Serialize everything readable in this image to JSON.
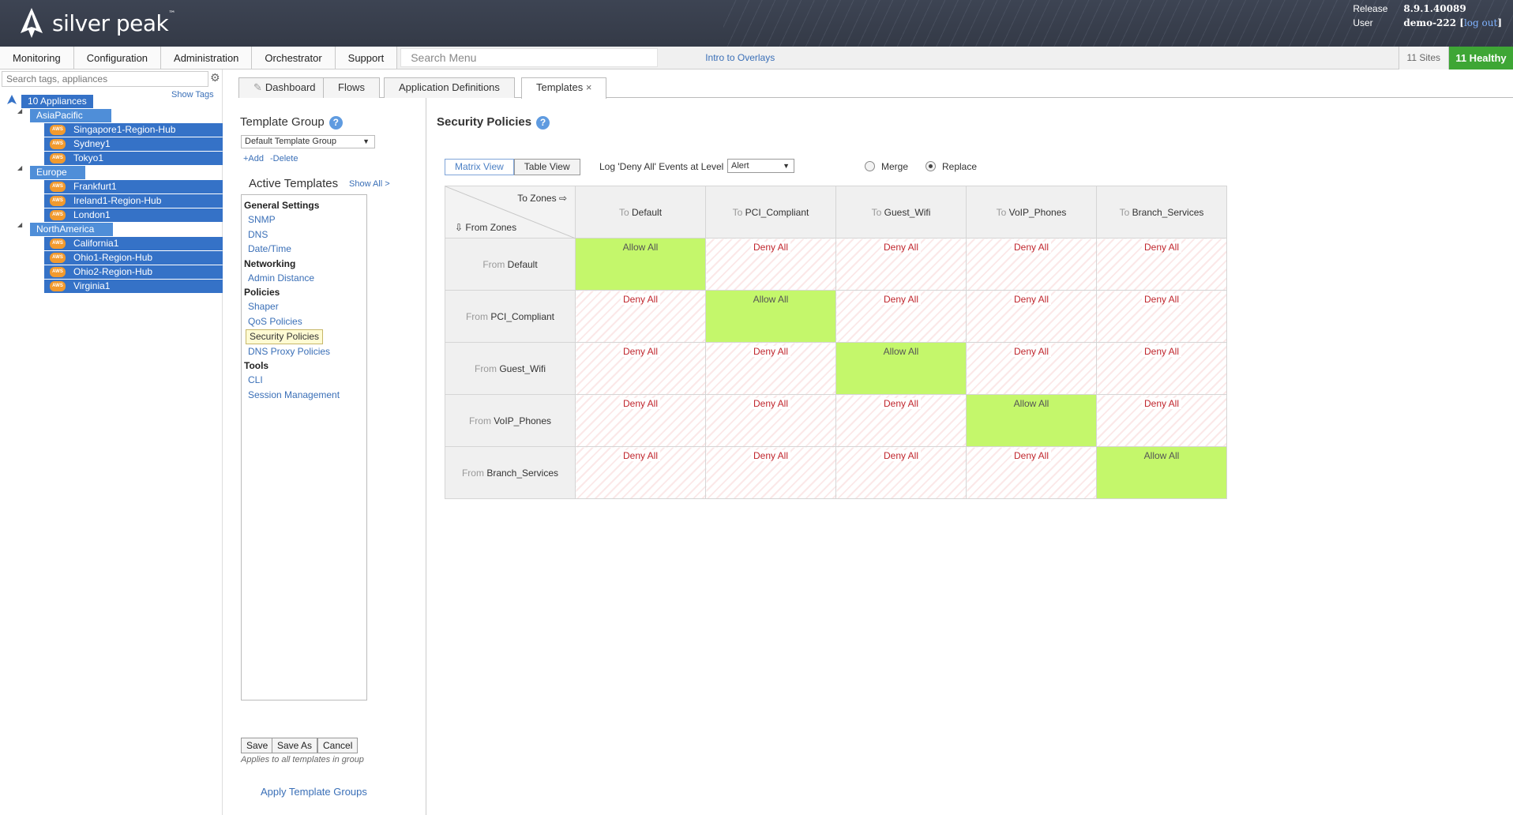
{
  "header": {
    "logo_text": "silver peak",
    "logo_tm": "™",
    "release_label": "Release",
    "release_value": "8.9.1.40089",
    "user_label": "User",
    "user_value": "demo-222",
    "logout_label": "log out"
  },
  "topnav": {
    "tabs": [
      "Monitoring",
      "Configuration",
      "Administration",
      "Orchestrator",
      "Support"
    ],
    "search_placeholder": "Search Menu",
    "intro_link": "Intro to Overlays",
    "sites": "11 Sites",
    "healthy": "11 Healthy",
    "healthy_color": "#3ea635"
  },
  "tree": {
    "search_placeholder": "Search tags, appliances",
    "show_tags": "Show Tags",
    "root": "10 Appliances",
    "groups": [
      {
        "name": "AsiaPacific",
        "items": [
          "Singapore1-Region-Hub",
          "Sydney1",
          "Tokyo1"
        ]
      },
      {
        "name": "Europe",
        "items": [
          "Frankfurt1",
          "Ireland1-Region-Hub",
          "London1"
        ]
      },
      {
        "name": "NorthAmerica",
        "items": [
          "California1",
          "Ohio1-Region-Hub",
          "Ohio2-Region-Hub",
          "Virginia1"
        ]
      }
    ],
    "aws_label": "AWS"
  },
  "subtabs": [
    "Dashboard",
    "Flows",
    "Application Definitions",
    "Templates"
  ],
  "templates": {
    "group_title": "Template Group",
    "group_selected": "Default Template Group",
    "add": "+Add",
    "delete": "-Delete",
    "active_title": "Active Templates",
    "show_all": "Show All >",
    "sections": [
      {
        "heading": "General Settings",
        "items": [
          "SNMP",
          "DNS",
          "Date/Time"
        ]
      },
      {
        "heading": "Networking",
        "items": [
          "Admin Distance"
        ]
      },
      {
        "heading": "Policies",
        "items": [
          "Shaper",
          "QoS Policies",
          "Security Policies",
          "DNS Proxy Policies"
        ]
      },
      {
        "heading": "Tools",
        "items": [
          "CLI",
          "Session Management"
        ]
      }
    ],
    "selected_item": "Security Policies",
    "save": "Save",
    "save_as": "Save As",
    "cancel": "Cancel",
    "applies_note": "Applies to all templates in group",
    "apply_groups": "Apply Template Groups"
  },
  "main": {
    "title": "Security Policies",
    "matrix_view": "Matrix View",
    "table_view": "Table View",
    "log_label": "Log 'Deny All' Events at Level",
    "log_level": "Alert",
    "merge": "Merge",
    "replace": "Replace",
    "replace_selected": true,
    "to_zones": "To Zones",
    "from_zones": "From Zones",
    "to_prefix": "To",
    "from_prefix": "From",
    "zones": [
      "Default",
      "PCI_Compliant",
      "Guest_Wifi",
      "VoIP_Phones",
      "Branch_Services"
    ],
    "allow_text": "Allow All",
    "deny_text": "Deny All",
    "allow_color": "#c4f76b",
    "deny_color": "#c0262d"
  }
}
